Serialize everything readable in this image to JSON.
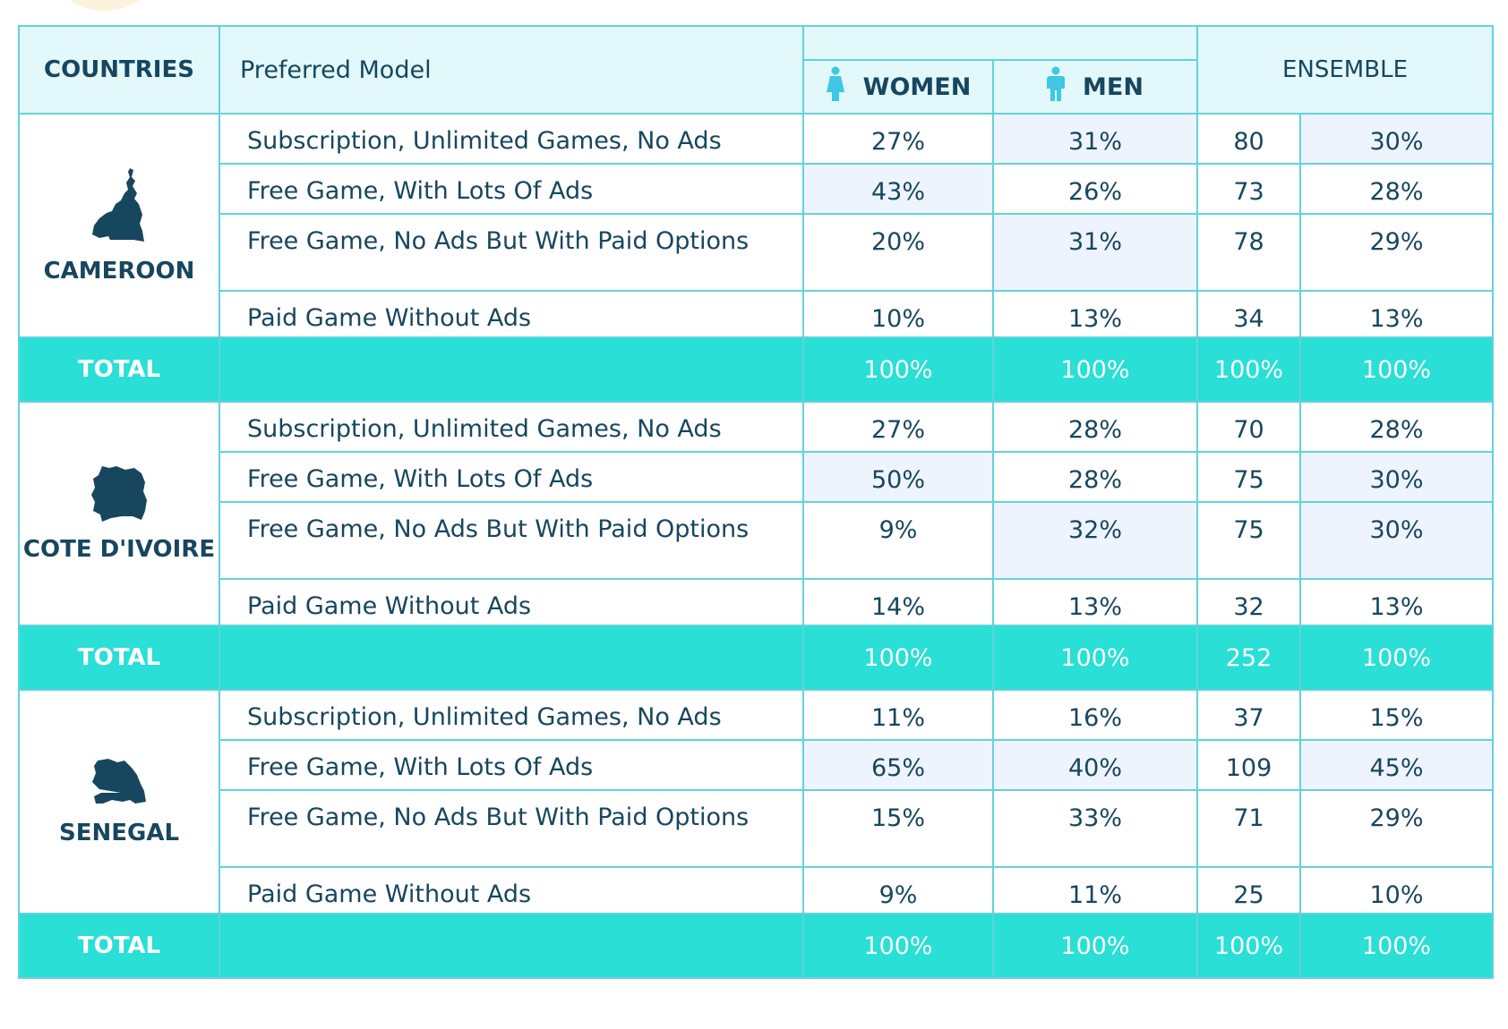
{
  "colors": {
    "teal": "#29dfd6",
    "header_bg": "#e2f8fb",
    "text": "#17465f",
    "border": "#63d2dc",
    "highlight": "#eef4fd",
    "ensemble_divider": "#e86ea6",
    "icon": "#3fc7e3"
  },
  "header": {
    "countries": "COUNTRIES",
    "model": "Preferred Model",
    "women": "WOMEN",
    "men": "MEN",
    "ensemble": "ENSEMBLE",
    "women_icon": "woman-icon",
    "men_icon": "man-icon"
  },
  "chart_data": {
    "type": "table",
    "columns": [
      "COUNTRIES",
      "Preferred Model",
      "WOMEN",
      "MEN",
      "ENSEMBLE",
      "ENSEMBLE %"
    ],
    "groups": [
      {
        "country": "CAMEROON",
        "map_icon": "cameroon-map-icon",
        "rows": [
          {
            "model": "Subscription, Unlimited Games, No Ads",
            "women": "27%",
            "men": "31%",
            "count": "80",
            "pct": "30%",
            "hl": [
              false,
              true,
              false,
              true
            ]
          },
          {
            "model": "Free Game, With Lots Of Ads",
            "women": "43%",
            "men": "26%",
            "count": "73",
            "pct": "28%",
            "hl": [
              true,
              false,
              false,
              false
            ]
          },
          {
            "model": "Free Game, No Ads But With Paid Options",
            "women": "20%",
            "men": "31%",
            "count": "78",
            "pct": "29%",
            "hl": [
              false,
              true,
              false,
              false
            ]
          },
          {
            "model": "Paid Game Without Ads",
            "women": "10%",
            "men": "13%",
            "count": "34",
            "pct": "13%",
            "hl": [
              false,
              false,
              false,
              false
            ]
          }
        ],
        "total": {
          "label": "TOTAL",
          "women": "100%",
          "men": "100%",
          "count": "100%",
          "pct": "100%"
        }
      },
      {
        "country": "COTE D'IVOIRE",
        "map_icon": "cote-divoire-map-icon",
        "rows": [
          {
            "model": "Subscription, Unlimited Games, No Ads",
            "women": "27%",
            "men": "28%",
            "count": "70",
            "pct": "28%",
            "hl": [
              false,
              false,
              false,
              false
            ]
          },
          {
            "model": "Free Game, With Lots Of Ads",
            "women": "50%",
            "men": "28%",
            "count": "75",
            "pct": "30%",
            "hl": [
              true,
              false,
              false,
              true
            ]
          },
          {
            "model": "Free Game, No Ads But With Paid Options",
            "women": "9%",
            "men": "32%",
            "count": "75",
            "pct": "30%",
            "hl": [
              false,
              true,
              false,
              true
            ]
          },
          {
            "model": "Paid Game Without Ads",
            "women": "14%",
            "men": "13%",
            "count": "32",
            "pct": "13%",
            "hl": [
              false,
              false,
              false,
              false
            ]
          }
        ],
        "total": {
          "label": "TOTAL",
          "women": "100%",
          "men": "100%",
          "count": "252",
          "pct": "100%"
        }
      },
      {
        "country": "SENEGAL",
        "map_icon": "senegal-map-icon",
        "rows": [
          {
            "model": "Subscription, Unlimited Games, No Ads",
            "women": "11%",
            "men": "16%",
            "count": "37",
            "pct": "15%",
            "hl": [
              false,
              false,
              false,
              false
            ]
          },
          {
            "model": "Free Game, With Lots Of Ads",
            "women": "65%",
            "men": "40%",
            "count": "109",
            "pct": "45%",
            "hl": [
              true,
              true,
              false,
              true
            ]
          },
          {
            "model": "Free Game, No Ads But With Paid Options",
            "women": "15%",
            "men": "33%",
            "count": "71",
            "pct": "29%",
            "hl": [
              false,
              false,
              false,
              false
            ]
          },
          {
            "model": "Paid Game Without Ads",
            "women": "9%",
            "men": "11%",
            "count": "25",
            "pct": "10%",
            "hl": [
              false,
              false,
              false,
              false
            ]
          }
        ],
        "total": {
          "label": "TOTAL",
          "women": "100%",
          "men": "100%",
          "count": "100%",
          "pct": "100%"
        }
      }
    ]
  }
}
